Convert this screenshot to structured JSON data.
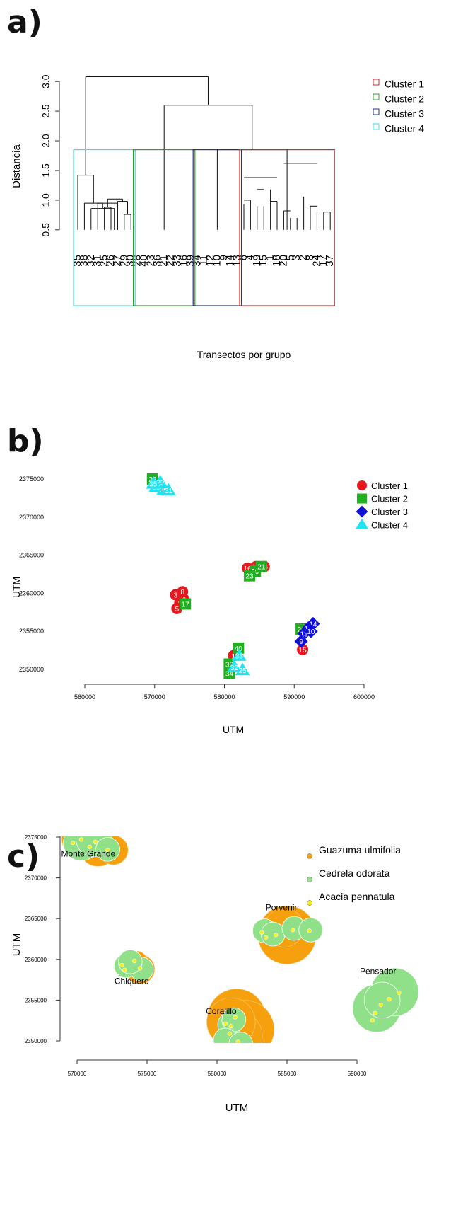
{
  "panels": {
    "a": "a)",
    "b": "b)",
    "c": "c)"
  },
  "chart_data": [
    {
      "type": "dendrogram",
      "ylabel": "Distancia",
      "xlabel": "Transectos por grupo",
      "ylim": [
        0.2,
        3.3
      ],
      "yticks": [
        "0.5",
        "1.0",
        "1.5",
        "2.0",
        "2.5",
        "3.0"
      ],
      "leaves": [
        "35",
        "38",
        "32",
        "31",
        "25",
        "26",
        "27",
        "29",
        "30",
        "28",
        "40",
        "23",
        "36",
        "21",
        "22",
        "33",
        "16",
        "39",
        "34",
        "11",
        "12",
        "10",
        "9",
        "14",
        "13",
        "6",
        "4",
        "19",
        "15",
        "1",
        "18",
        "20",
        "5",
        "3",
        "2",
        "8",
        "24",
        "17",
        "37"
      ],
      "merges": [
        [
          0,
          [
            1,
            2,
            3,
            4,
            5,
            6,
            7,
            8
          ],
          1.42
        ],
        [
          1,
          [
            2,
            3,
            4,
            5,
            6,
            7,
            8
          ],
          0.95
        ],
        [
          2,
          [
            3,
            4,
            5,
            6,
            7,
            8
          ],
          0.86
        ],
        [
          3,
          [
            4,
            5,
            6,
            7,
            8
          ],
          0.95
        ],
        [
          [
            4,
            5
          ],
          [
            6,
            7,
            8
          ],
          1.02
        ],
        [
          4,
          5,
          0.88
        ],
        [
          6,
          [
            7,
            8
          ],
          0.98
        ],
        [
          7,
          8,
          0.76
        ],
        [
          [
            0,
            1,
            2,
            3,
            4,
            5,
            6,
            7,
            8
          ],
          [
            [
              9,
              10,
              11,
              12,
              13,
              14,
              15,
              16,
              17
            ],
            [
              [
                18,
                19,
                20,
                21,
                22,
                23,
                24
              ],
              [
                25,
                26,
                27,
                28,
                29,
                30,
                31,
                32,
                33,
                34,
                35,
                36,
                37,
                38
              ]
            ]
          ],
          3.08
        ],
        [
          [
            9,
            10,
            11,
            12,
            13,
            14,
            15,
            16,
            17
          ],
          [
            [
              18,
              19,
              20,
              21,
              22,
              23,
              24
            ],
            [
              25,
              26,
              27,
              28,
              29,
              30,
              31,
              32,
              33,
              34,
              35,
              36,
              37,
              38
            ]
          ],
          2.6
        ],
        [
          [
            18,
            19,
            20,
            21,
            22,
            23,
            24
          ],
          [
            25,
            26,
            27,
            28,
            29,
            30,
            31,
            32,
            33,
            34,
            35,
            36,
            37,
            38
          ],
          1.85
        ]
      ],
      "clusters": [
        {
          "name": "Cluster 1",
          "color": "#d62728"
        },
        {
          "name": "Cluster 2",
          "color": "#2ca02c"
        },
        {
          "name": "Cluster 3",
          "color": "#1f2fa0"
        },
        {
          "name": "Cluster 4",
          "color": "#3fdde0"
        }
      ],
      "legend_position": "top-right"
    },
    {
      "type": "scatter",
      "xlabel": "UTM",
      "ylabel": "UTM",
      "xlim": [
        560000,
        600000
      ],
      "ylim": [
        2350000,
        2375000
      ],
      "xticks": [
        "560000",
        "570000",
        "580000",
        "590000",
        "600000"
      ],
      "yticks": [
        "2350000",
        "2355000",
        "2360000",
        "2365000",
        "2370000",
        "2375000"
      ],
      "legend_position": "top-right",
      "series": [
        {
          "name": "Cluster 1",
          "marker": "circle",
          "color": "#e8171e",
          "points": [
            [
              573000,
              2359800,
              "3"
            ],
            [
              574000,
              2360200,
              "8"
            ],
            [
              573600,
              2358700,
              "2"
            ],
            [
              573200,
              2358000,
              "5"
            ],
            [
              574200,
              2359200,
              "6"
            ],
            [
              583300,
              2363300,
              "16"
            ],
            [
              584500,
              2363500,
              "18"
            ],
            [
              585700,
              2363500,
              "24"
            ],
            [
              581300,
              2351800,
              "1"
            ],
            [
              591200,
              2352600,
              "15"
            ]
          ]
        },
        {
          "name": "Cluster 2",
          "marker": "square",
          "color": "#1faf1f",
          "points": [
            [
              569700,
              2375000,
              "28"
            ],
            [
              574400,
              2358600,
              "17"
            ],
            [
              584400,
              2362900,
              "29"
            ],
            [
              585300,
              2363500,
              "21"
            ],
            [
              583600,
              2362300,
              "23"
            ],
            [
              582000,
              2352800,
              "40"
            ],
            [
              580700,
              2350700,
              "36"
            ],
            [
              580700,
              2349500,
              "34"
            ],
            [
              591000,
              2355300,
              "20"
            ]
          ]
        },
        {
          "name": "Cluster 3",
          "marker": "diamond",
          "color": "#1010d8",
          "points": [
            [
              592700,
              2356000,
              "14"
            ],
            [
              592000,
              2355400,
              "12"
            ],
            [
              591400,
              2354700,
              "13"
            ],
            [
              591000,
              2353700,
              "9"
            ],
            [
              592400,
              2355000,
              "10"
            ]
          ]
        },
        {
          "name": "Cluster 4",
          "marker": "triangle",
          "color": "#1fe3ef",
          "points": [
            [
              570800,
              2374600,
              "29"
            ],
            [
              570200,
              2374000,
              "38"
            ],
            [
              571300,
              2373600,
              "30"
            ],
            [
              572000,
              2373500,
              "31"
            ],
            [
              569800,
              2374400,
              "35"
            ],
            [
              582100,
              2351800,
              "33"
            ],
            [
              581400,
              2350300,
              "32"
            ],
            [
              582600,
              2349900,
              "25"
            ]
          ]
        }
      ]
    },
    {
      "type": "bubble",
      "xlabel": "UTM",
      "ylabel": "UTM",
      "xlim": [
        570000,
        592000
      ],
      "ylim": [
        2350000,
        2375000
      ],
      "xticks": [
        "570000",
        "575000",
        "580000",
        "585000",
        "590000"
      ],
      "yticks": [
        "2350000",
        "2355000",
        "2360000",
        "2365000",
        "2370000",
        "2375000"
      ],
      "legend_position": "top-right",
      "series": [
        {
          "name": "Guazuma ulmifolia",
          "color": "#f5a00c"
        },
        {
          "name": "Cedrela odorata",
          "color": "#90e08a"
        },
        {
          "name": "Acacia pennatula",
          "color": "#f2ee1a"
        }
      ],
      "sites": [
        {
          "name": "Monte Grande",
          "x": 570800,
          "y": 2372600
        },
        {
          "name": "Porvenir",
          "x": 584600,
          "y": 2366000
        },
        {
          "name": "Chiquero",
          "x": 573900,
          "y": 2357000
        },
        {
          "name": "Pensador",
          "x": 591500,
          "y": 2358200
        },
        {
          "name": "Coralillo",
          "x": 580300,
          "y": 2353300
        }
      ],
      "orange_bubbles": [
        [
          570300,
          2374800,
          4
        ],
        [
          571500,
          2373800,
          4
        ],
        [
          572600,
          2373400,
          3
        ],
        [
          570800,
          2374200,
          3
        ],
        [
          574500,
          2358800,
          3
        ],
        [
          574300,
          2359800,
          2
        ],
        [
          585000,
          2363000,
          6
        ],
        [
          584800,
          2363900,
          4
        ],
        [
          581400,
          2352800,
          6
        ],
        [
          582000,
          2351400,
          6
        ],
        [
          581500,
          2350600,
          5
        ],
        [
          581000,
          2352300,
          5
        ]
      ],
      "green_bubbles": [
        [
          570300,
          2374300,
          3
        ],
        [
          571200,
          2374800,
          3
        ],
        [
          572200,
          2373500,
          2
        ],
        [
          573500,
          2359200,
          2
        ],
        [
          574600,
          2358800,
          2
        ],
        [
          573800,
          2359700,
          2
        ],
        [
          583400,
          2363500,
          2
        ],
        [
          584000,
          2363100,
          2
        ],
        [
          585500,
          2363800,
          2
        ],
        [
          586700,
          2363600,
          2
        ],
        [
          580900,
          2352000,
          2
        ],
        [
          581200,
          2352600,
          2
        ],
        [
          580600,
          2350100,
          2
        ],
        [
          581700,
          2349600,
          2
        ],
        [
          591400,
          2354000,
          4
        ],
        [
          592700,
          2356000,
          4
        ],
        [
          591800,
          2355000,
          3
        ]
      ],
      "yellow_dots": [
        [
          569700,
          2374300
        ],
        [
          570300,
          2374700
        ],
        [
          570900,
          2373800
        ],
        [
          571300,
          2374400
        ],
        [
          572200,
          2373400
        ],
        [
          573200,
          2359300
        ],
        [
          573400,
          2358700
        ],
        [
          574100,
          2359800
        ],
        [
          574500,
          2358900
        ],
        [
          583200,
          2363300
        ],
        [
          583500,
          2362700
        ],
        [
          584200,
          2363000
        ],
        [
          585400,
          2363600
        ],
        [
          586600,
          2363500
        ],
        [
          580600,
          2352100
        ],
        [
          581000,
          2351800
        ],
        [
          581300,
          2352900
        ],
        [
          580900,
          2350900
        ],
        [
          581500,
          2349900
        ],
        [
          591100,
          2352500
        ],
        [
          591300,
          2353400
        ],
        [
          591700,
          2354400
        ],
        [
          592300,
          2355100
        ],
        [
          593000,
          2355900
        ]
      ]
    }
  ]
}
